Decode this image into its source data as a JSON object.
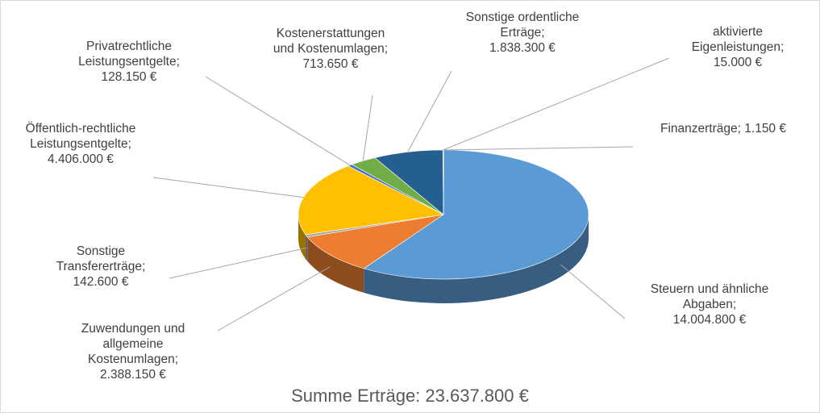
{
  "chart_data": {
    "type": "pie",
    "title": "Summe Erträge: 23.637.800 €",
    "categories": [
      "Steuern und ähnliche Abgaben;",
      "Zuwendungen und allgemeine Kostenumlagen;",
      "Sonstige Transfererträge;",
      "Öffentlich-rechtliche Leistungsentgelte;",
      "Privatrechtliche Leistungsentgelte;",
      "Kostenerstattungen und Kostenumlagen;",
      "Sonstige ordentliche Erträge;",
      "aktivierte Eigenleistungen;",
      "Finanzerträge;"
    ],
    "values": [
      14004800,
      2388150,
      142600,
      4406000,
      128150,
      713650,
      1838300,
      15000,
      1150
    ],
    "value_labels": [
      "14.004.800 €",
      "2.388.150 €",
      "142.600 €",
      "4.406.000 €",
      "128.150 €",
      "713.650 €",
      "1.838.300 €",
      "15.000 €",
      "1.150 €"
    ],
    "colors": [
      "#5b9bd5",
      "#ed7d31",
      "#a5a5a5",
      "#ffc000",
      "#4472c4",
      "#70ad47",
      "#255e91",
      "#9e480e",
      "#636363"
    ]
  }
}
